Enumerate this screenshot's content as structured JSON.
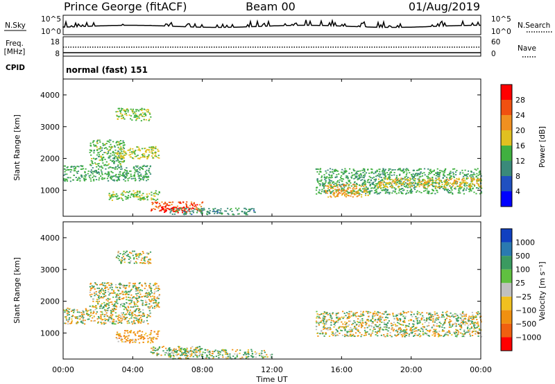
{
  "header": {
    "station": "Prince George (fitACF)",
    "beam": "Beam 00",
    "date": "01/Aug/2019"
  },
  "noise_panel": {
    "left_label": "N.Sky",
    "left_ticks": [
      "10^5",
      "10^0"
    ],
    "right_label": "N.Search",
    "right_ticks": [
      "10^5",
      "10^0"
    ]
  },
  "freq_panel": {
    "left_label_line1": "Freq.",
    "left_label_line2": "[MHz]",
    "left_ticks": [
      "18",
      "8"
    ],
    "right_label": "Nave",
    "right_ticks": [
      "60",
      "0"
    ]
  },
  "cpid": {
    "label": "CPID",
    "mode": "normal (fast) 151"
  },
  "x_axis": {
    "label": "Time UT",
    "ticks": [
      "00:00",
      "04:00",
      "08:00",
      "12:00",
      "16:00",
      "20:00",
      "00:00"
    ]
  },
  "range_axis": {
    "label": "Slant Range [km]",
    "ticks": [
      "1000",
      "2000",
      "3000",
      "4000"
    ]
  },
  "power_colorbar": {
    "label": "Power [dB]",
    "ticks": [
      "4",
      "8",
      "12",
      "16",
      "20",
      "24",
      "28"
    ],
    "colors": [
      "#0000ff",
      "#2050c0",
      "#3a8a7a",
      "#40b040",
      "#e0c020",
      "#f09020",
      "#f05010",
      "#ff0000"
    ]
  },
  "velocity_colorbar": {
    "label": "Velocity [m s⁻¹]",
    "ticks": [
      "1000",
      "500",
      "100",
      "25",
      "−25",
      "−100",
      "−500",
      "−1000"
    ],
    "colors": [
      "#1040c0",
      "#2a7ab0",
      "#3a9a60",
      "#60c040",
      "#c0c0c0",
      "#f0c020",
      "#f09010",
      "#f06010",
      "#ff0000"
    ]
  },
  "chart_data": {
    "type": "heatmap",
    "title": "Prince George (fitACF) Beam 00 01/Aug/2019",
    "xlabel": "Time UT",
    "ylabel": "Slant Range [km]",
    "xlim": [
      0,
      24
    ],
    "ylim": [
      180,
      4500
    ],
    "x_unit": "hours UT",
    "series": [
      {
        "name": "Power [dB]",
        "range": [
          0,
          30
        ],
        "regions": [
          {
            "t": [
              0.0,
              5.0
            ],
            "r": [
              1300,
              1800
            ],
            "value": 12
          },
          {
            "t": [
              1.5,
              3.5
            ],
            "r": [
              1800,
              2600
            ],
            "value": 13
          },
          {
            "t": [
              3.0,
              5.5
            ],
            "r": [
              2000,
              2400
            ],
            "value": 16
          },
          {
            "t": [
              3.0,
              5.0
            ],
            "r": [
              3200,
              3600
            ],
            "value": 14
          },
          {
            "t": [
              2.5,
              5.5
            ],
            "r": [
              700,
              1000
            ],
            "value": 14
          },
          {
            "t": [
              5.0,
              8.0
            ],
            "r": [
              350,
              650
            ],
            "value": 24
          },
          {
            "t": [
              5.5,
              7.5
            ],
            "r": [
              300,
              500
            ],
            "value": 28
          },
          {
            "t": [
              6.0,
              11.0
            ],
            "r": [
              250,
              450
            ],
            "value": 10
          },
          {
            "t": [
              14.5,
              24.0
            ],
            "r": [
              900,
              1700
            ],
            "value": 12
          },
          {
            "t": [
              15.0,
              17.5
            ],
            "r": [
              800,
              1200
            ],
            "value": 20
          },
          {
            "t": [
              18.0,
              24.0
            ],
            "r": [
              1100,
              1400
            ],
            "value": 18
          }
        ]
      },
      {
        "name": "Velocity [m s⁻¹]",
        "range": [
          -1000,
          1000
        ],
        "regions": [
          {
            "t": [
              0.0,
              5.0
            ],
            "r": [
              1300,
              1800
            ],
            "value": 0
          },
          {
            "t": [
              1.5,
              5.5
            ],
            "r": [
              1800,
              2600
            ],
            "value": 0
          },
          {
            "t": [
              3.0,
              5.0
            ],
            "r": [
              3200,
              3600
            ],
            "value": 0
          },
          {
            "t": [
              3.0,
              5.5
            ],
            "r": [
              700,
              1100
            ],
            "value": -150
          },
          {
            "t": [
              5.0,
              8.0
            ],
            "r": [
              300,
              600
            ],
            "value": 40
          },
          {
            "t": [
              6.0,
              12.0
            ],
            "r": [
              200,
              500
            ],
            "value": 80
          },
          {
            "t": [
              14.5,
              24.0
            ],
            "r": [
              900,
              1700
            ],
            "value": 0
          }
        ]
      }
    ]
  }
}
